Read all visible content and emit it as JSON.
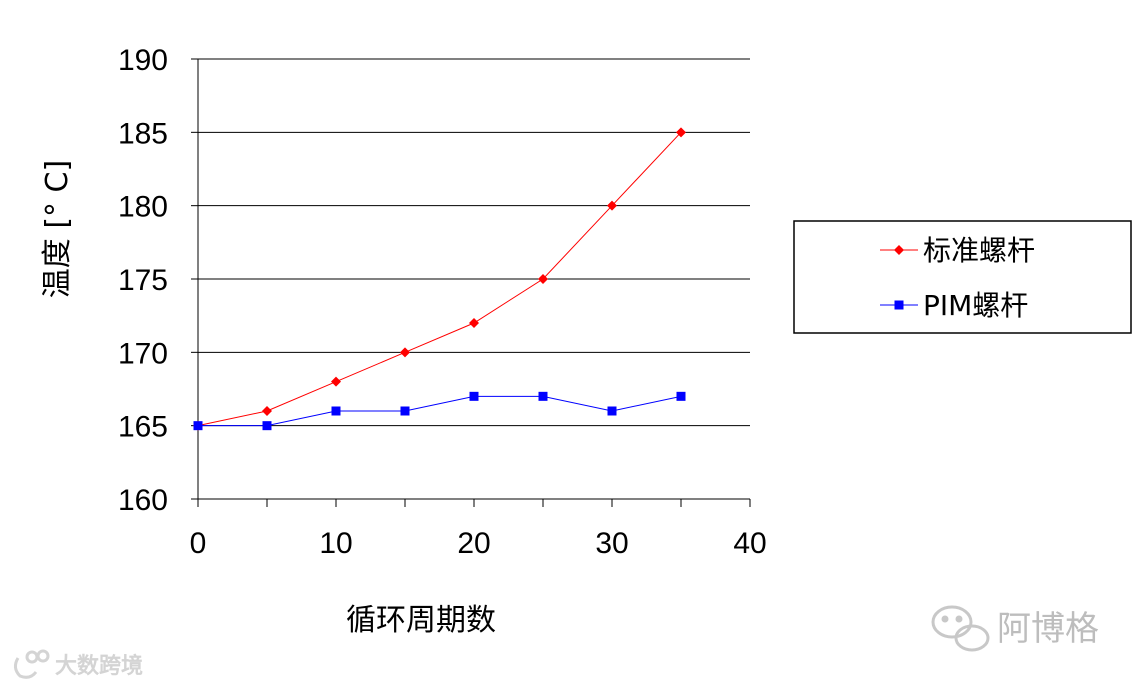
{
  "chart_data": {
    "type": "line",
    "title": "",
    "xlabel": "循环周期数",
    "ylabel": "温度 [° C]",
    "xlim": [
      0,
      40
    ],
    "ylim": [
      160,
      190
    ],
    "xticks": [
      0,
      10,
      20,
      30,
      40
    ],
    "yticks": [
      160,
      165,
      170,
      175,
      180,
      185,
      190
    ],
    "grid": "horizontal",
    "legend_position": "right",
    "series": [
      {
        "name": "标准螺杆",
        "color": "#ff0000",
        "marker": "diamond",
        "x": [
          0,
          5,
          10,
          15,
          20,
          25,
          30,
          35
        ],
        "y": [
          165,
          166,
          168,
          170,
          172,
          175,
          180,
          185
        ]
      },
      {
        "name": "PIM螺杆",
        "color": "#0000ff",
        "marker": "square",
        "x": [
          0,
          5,
          10,
          15,
          20,
          25,
          30,
          35
        ],
        "y": [
          165,
          165,
          166,
          166,
          167,
          167,
          166,
          167
        ]
      }
    ]
  },
  "watermarks": {
    "right_text": "阿博格",
    "right_icon": "wechat-icon",
    "left_text": "大数跨境",
    "left_icon": "brand-logo-icon"
  }
}
